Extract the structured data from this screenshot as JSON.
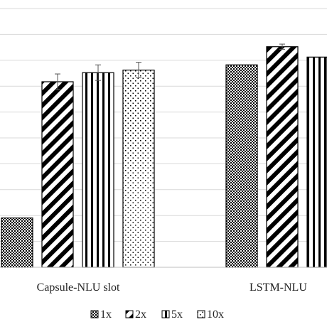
{
  "chart_data": {
    "type": "bar",
    "categories": [
      "Capsule-NLU slot",
      "LSTM-NLU"
    ],
    "series": [
      {
        "name": "1x",
        "pattern": "checker",
        "values": [
          19,
          78
        ]
      },
      {
        "name": "2x",
        "pattern": "diagonal",
        "values": [
          71.5,
          85
        ]
      },
      {
        "name": "5x",
        "pattern": "vertical",
        "values": [
          75,
          81
        ]
      },
      {
        "name": "10x",
        "pattern": "dots",
        "values": [
          76,
          null
        ]
      }
    ],
    "errors": [
      [
        null,
        null
      ],
      [
        3,
        1
      ],
      [
        3,
        null
      ],
      [
        3,
        1
      ]
    ],
    "ylim": [
      0,
      103
    ],
    "grid": true,
    "legend_position": "bottom",
    "colors": {
      "ink": "#000000",
      "grid": "#d9d9d9",
      "axis": "#bfbfbf"
    }
  }
}
